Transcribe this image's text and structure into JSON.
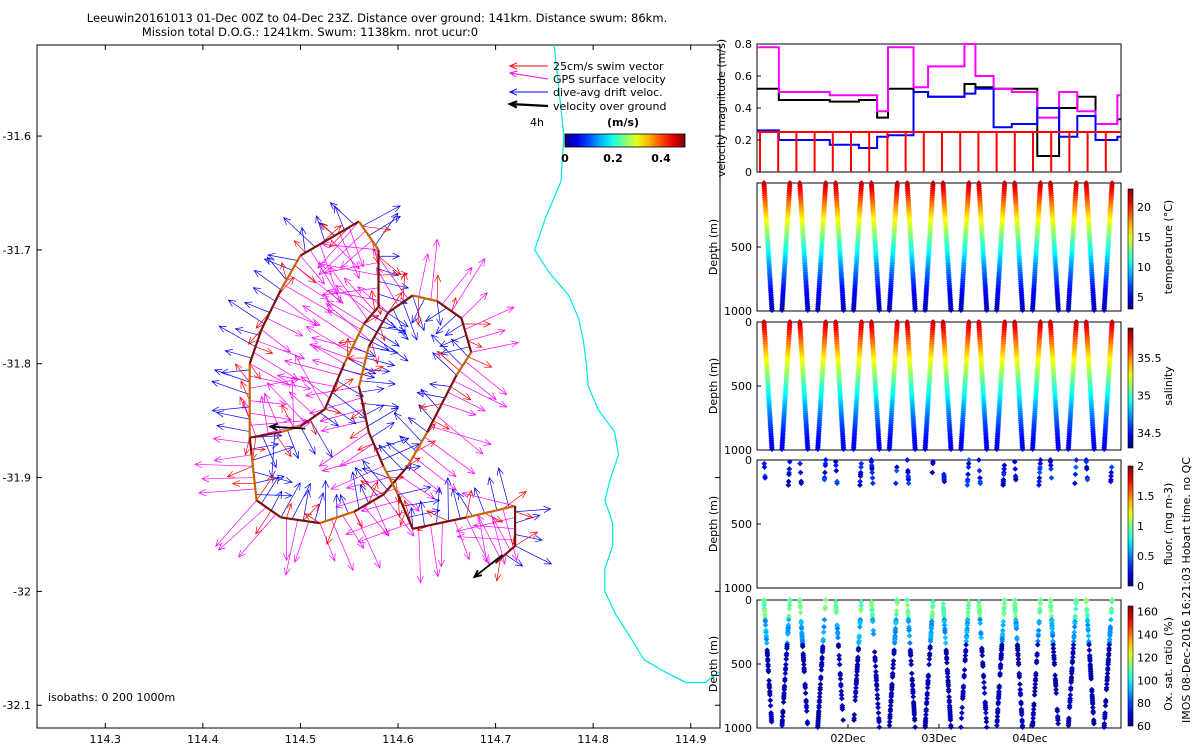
{
  "title_line1": "Leeuwin20161013 01-Dec 00Z to 04-Dec 23Z. Distance over ground: 141km. Distance swum: 86km.",
  "title_line2": "Mission total D.O.G.: 1241km. Swum: 1138km. nrot ucur:0",
  "side_note": "IMOS 08-Dec-2016 16:21:03 Hobart time. no QC",
  "colors": {
    "swim": "#ff0000",
    "gps": "#ff00ff",
    "drift": "#0000ff",
    "ground": "#000000",
    "coast": "#00e5e5",
    "track_a": "#c86400",
    "track_b": "#7a1010"
  },
  "chart_data": [
    {
      "type": "quiver-map",
      "xlim": [
        114.23,
        114.93
      ],
      "ylim": [
        -32.12,
        -31.52
      ],
      "xticks": [
        "114.3",
        "114.4",
        "114.5",
        "114.6",
        "114.7",
        "114.8",
        "114.9"
      ],
      "xtick_values": [
        114.3,
        114.4,
        114.5,
        114.6,
        114.7,
        114.8,
        114.9
      ],
      "yticks": [
        "-31.6",
        "-31.7",
        "-31.8",
        "-31.9",
        "-32",
        "-32.1"
      ],
      "ytick_values": [
        -31.6,
        -31.7,
        -31.8,
        -31.9,
        -32.0,
        -32.1
      ],
      "legend": {
        "placement": "top-right",
        "entries": [
          "25cm/s swim vector",
          "GPS surface velocity",
          "dive-avg drift veloc.",
          "velocity over ground"
        ],
        "scale_label": "4h"
      },
      "colorbar": {
        "label": "(m/s)",
        "ticks": [
          "0",
          "0.2",
          "0.4"
        ],
        "tick_values": [
          0,
          0.2,
          0.4
        ],
        "range": [
          0,
          0.5
        ]
      },
      "isobaths_label": "isobaths: 0   200  1000m",
      "track": [
        [
          114.448,
          -31.865
        ],
        [
          114.448,
          -31.8
        ],
        [
          114.46,
          -31.77
        ],
        [
          114.48,
          -31.735
        ],
        [
          114.5,
          -31.705
        ],
        [
          114.53,
          -31.69
        ],
        [
          114.56,
          -31.675
        ],
        [
          114.58,
          -31.7
        ],
        [
          114.58,
          -31.75
        ],
        [
          114.565,
          -31.765
        ],
        [
          114.545,
          -31.8
        ],
        [
          114.525,
          -31.84
        ],
        [
          114.5,
          -31.855
        ],
        [
          114.48,
          -31.86
        ],
        [
          114.448,
          -31.865
        ],
        [
          114.45,
          -31.88
        ],
        [
          114.455,
          -31.92
        ],
        [
          114.48,
          -31.935
        ],
        [
          114.52,
          -31.94
        ],
        [
          114.555,
          -31.93
        ],
        [
          114.585,
          -31.915
        ],
        [
          114.61,
          -31.89
        ],
        [
          114.63,
          -31.86
        ],
        [
          114.645,
          -31.835
        ],
        [
          114.66,
          -31.81
        ],
        [
          114.675,
          -31.79
        ],
        [
          114.665,
          -31.76
        ],
        [
          114.64,
          -31.745
        ],
        [
          114.615,
          -31.74
        ],
        [
          114.59,
          -31.755
        ],
        [
          114.57,
          -31.785
        ],
        [
          114.56,
          -31.82
        ],
        [
          114.57,
          -31.86
        ],
        [
          114.585,
          -31.89
        ],
        [
          114.6,
          -31.915
        ],
        [
          114.615,
          -31.945
        ],
        [
          114.67,
          -31.935
        ],
        [
          114.72,
          -31.925
        ],
        [
          114.72,
          -31.96
        ],
        [
          114.7,
          -31.975
        ]
      ],
      "coastline": [
        [
          114.76,
          -31.52
        ],
        [
          114.765,
          -31.56
        ],
        [
          114.77,
          -31.6
        ],
        [
          114.767,
          -31.64
        ],
        [
          114.752,
          -31.67
        ],
        [
          114.74,
          -31.7
        ],
        [
          114.755,
          -31.72
        ],
        [
          114.775,
          -31.74
        ],
        [
          114.785,
          -31.76
        ],
        [
          114.79,
          -31.78
        ],
        [
          114.793,
          -31.8
        ],
        [
          114.795,
          -31.82
        ],
        [
          114.805,
          -31.84
        ],
        [
          114.822,
          -31.86
        ],
        [
          114.826,
          -31.88
        ],
        [
          114.818,
          -31.9
        ],
        [
          114.812,
          -31.92
        ],
        [
          114.82,
          -31.94
        ],
        [
          114.82,
          -31.96
        ],
        [
          114.812,
          -31.98
        ],
        [
          114.812,
          -32.0
        ],
        [
          114.823,
          -32.02
        ],
        [
          114.838,
          -32.04
        ],
        [
          114.852,
          -32.06
        ],
        [
          114.872,
          -32.07
        ],
        [
          114.895,
          -32.08
        ],
        [
          114.915,
          -32.08
        ],
        [
          114.93,
          -32.07
        ]
      ]
    },
    {
      "type": "line",
      "ylabel": "velocity magnitude (m/s)",
      "ylim": [
        0,
        0.8
      ],
      "yticks": [
        "0",
        "0.2",
        "0.4",
        "0.6",
        "0.8"
      ],
      "ytick_values": [
        0,
        0.2,
        0.4,
        0.6,
        0.8
      ],
      "x": [
        0,
        0.06,
        0.2,
        0.28,
        0.33,
        0.36,
        0.43,
        0.47,
        0.57,
        0.6,
        0.65,
        0.7,
        0.77,
        0.83,
        0.88,
        0.93,
        0.99
      ],
      "series": [
        {
          "name": "velocity over ground",
          "color": "#000000",
          "values": [
            0.52,
            0.45,
            0.44,
            0.45,
            0.34,
            0.52,
            0.5,
            0.47,
            0.55,
            0.53,
            0.52,
            0.52,
            0.1,
            0.4,
            0.47,
            0.3,
            0.33
          ]
        },
        {
          "name": "GPS surface velocity",
          "color": "#ff00ff",
          "values": [
            0.78,
            0.5,
            0.48,
            0.48,
            0.38,
            0.78,
            0.53,
            0.66,
            0.8,
            0.6,
            0.52,
            0.5,
            0.34,
            0.5,
            0.38,
            0.3,
            0.48
          ]
        },
        {
          "name": "dive-avg drift veloc.",
          "color": "#0000ff",
          "values": [
            0.26,
            0.2,
            0.17,
            0.15,
            0.22,
            0.23,
            0.5,
            0.47,
            0.49,
            0.52,
            0.28,
            0.3,
            0.4,
            0.22,
            0.35,
            0.2,
            0.22
          ]
        },
        {
          "name": "25cm/s swim vector",
          "color": "#ff0000",
          "values": [
            0.25,
            0.25,
            0.25,
            0.25,
            0.25,
            0.25,
            0.25,
            0.25,
            0.25,
            0.25,
            0.25,
            0.25,
            0.25,
            0.25,
            0.25,
            0.25,
            0.25
          ]
        }
      ]
    },
    {
      "type": "scatter",
      "variable": "temperature",
      "ylabel": "Depth (m)",
      "colorbar_label": "temperature (°C)",
      "ylim": [
        1000,
        0
      ],
      "yticks": [
        "500",
        "1000"
      ],
      "ytick_values": [
        500,
        1000
      ],
      "colorbar_ticks": [
        "5",
        "10",
        "15",
        "20"
      ],
      "colorbar_tick_values": [
        5,
        10,
        15,
        20
      ],
      "crange": [
        3,
        23
      ],
      "profiles_per_day": 5,
      "surface_value": 22,
      "deep_value": 4
    },
    {
      "type": "scatter",
      "variable": "salinity",
      "ylabel": "Depth (m)",
      "colorbar_label": "salinity",
      "ylim": [
        1000,
        0
      ],
      "yticks": [
        "0",
        "500",
        "1000"
      ],
      "ytick_values": [
        0,
        500,
        1000
      ],
      "colorbar_ticks": [
        "34.5",
        "35",
        "35.5"
      ],
      "colorbar_tick_values": [
        34.5,
        35,
        35.5
      ],
      "crange": [
        34.3,
        35.9
      ],
      "profiles_per_day": 5,
      "surface_value": 35.8,
      "deep_value": 34.45
    },
    {
      "type": "scatter",
      "variable": "fluorescence",
      "ylabel": "Depth (m)",
      "colorbar_label": "fluor. (mg m-3)",
      "ylim": [
        1000,
        0
      ],
      "yticks": [
        "0",
        "500",
        "1000"
      ],
      "ytick_values": [
        0,
        500,
        1000
      ],
      "colorbar_ticks": [
        "0",
        "0.5",
        "1",
        "1.5",
        "2"
      ],
      "colorbar_tick_values": [
        0,
        0.5,
        1,
        1.5,
        2
      ],
      "crange": [
        0,
        2
      ],
      "profiles_per_day": 5
    },
    {
      "type": "scatter",
      "variable": "oxygen saturation",
      "ylabel": "Depth (m)",
      "colorbar_label": "Ox. sat. ratio (%)",
      "ylim": [
        1000,
        0
      ],
      "yticks": [
        "0",
        "500",
        "1000"
      ],
      "ytick_values": [
        0,
        500,
        1000
      ],
      "colorbar_ticks": [
        "60",
        "80",
        "100",
        "120",
        "140",
        "160"
      ],
      "colorbar_tick_values": [
        60,
        80,
        100,
        120,
        140,
        160
      ],
      "crange": [
        60,
        165
      ],
      "xticks": [
        "02Dec",
        "03Dec",
        "04Dec"
      ],
      "xtick_values": [
        1,
        2,
        3
      ],
      "xlim": [
        0,
        4
      ],
      "profiles_per_day": 5
    }
  ]
}
